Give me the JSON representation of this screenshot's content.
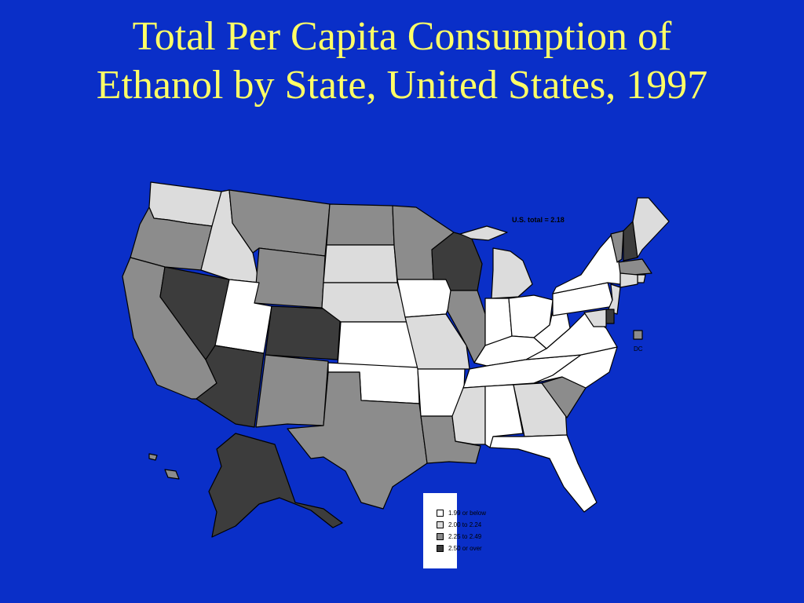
{
  "title": "Total Per Capita Consumption of Ethanol by State, United States, 1997",
  "us_total": "U.S. total = 2.18",
  "dc_label": "DC",
  "colors": {
    "background": "#0a2fc8",
    "title": "#ffff66",
    "cat1": "#ffffff",
    "cat2": "#dcdcdc",
    "cat3": "#8c8c8c",
    "cat4": "#3c3c3c"
  },
  "legend": [
    {
      "label": "1.99 or below",
      "category": "cat1"
    },
    {
      "label": "2.00 to 2.24",
      "category": "cat2"
    },
    {
      "label": "2.25 to 2.49",
      "category": "cat3"
    },
    {
      "label": "2.50 or over",
      "category": "cat4"
    }
  ],
  "states": {
    "WA": "cat2",
    "OR": "cat3",
    "CA": "cat3",
    "NV": "cat4",
    "ID": "cat2",
    "MT": "cat3",
    "WY": "cat3",
    "UT": "cat1",
    "CO": "cat4",
    "AZ": "cat4",
    "NM": "cat3",
    "ND": "cat3",
    "SD": "cat2",
    "NE": "cat2",
    "KS": "cat1",
    "OK": "cat1",
    "TX": "cat3",
    "MN": "cat3",
    "IA": "cat1",
    "MO": "cat2",
    "AR": "cat1",
    "LA": "cat3",
    "WI": "cat4",
    "IL": "cat3",
    "MI": "cat2",
    "IN": "cat1",
    "OH": "cat1",
    "KY": "cat1",
    "TN": "cat1",
    "MS": "cat2",
    "AL": "cat1",
    "GA": "cat2",
    "FL": "cat1",
    "SC": "cat3",
    "NC": "cat1",
    "VA": "cat1",
    "WV": "cat1",
    "PA": "cat1",
    "NY": "cat1",
    "VT": "cat3",
    "NH": "cat4",
    "ME": "cat2",
    "MA": "cat3",
    "RI": "cat2",
    "CT": "cat2",
    "NJ": "cat2",
    "DE": "cat4",
    "MD": "cat2",
    "AK": "cat4",
    "HI": "cat3",
    "DC": "cat3"
  }
}
